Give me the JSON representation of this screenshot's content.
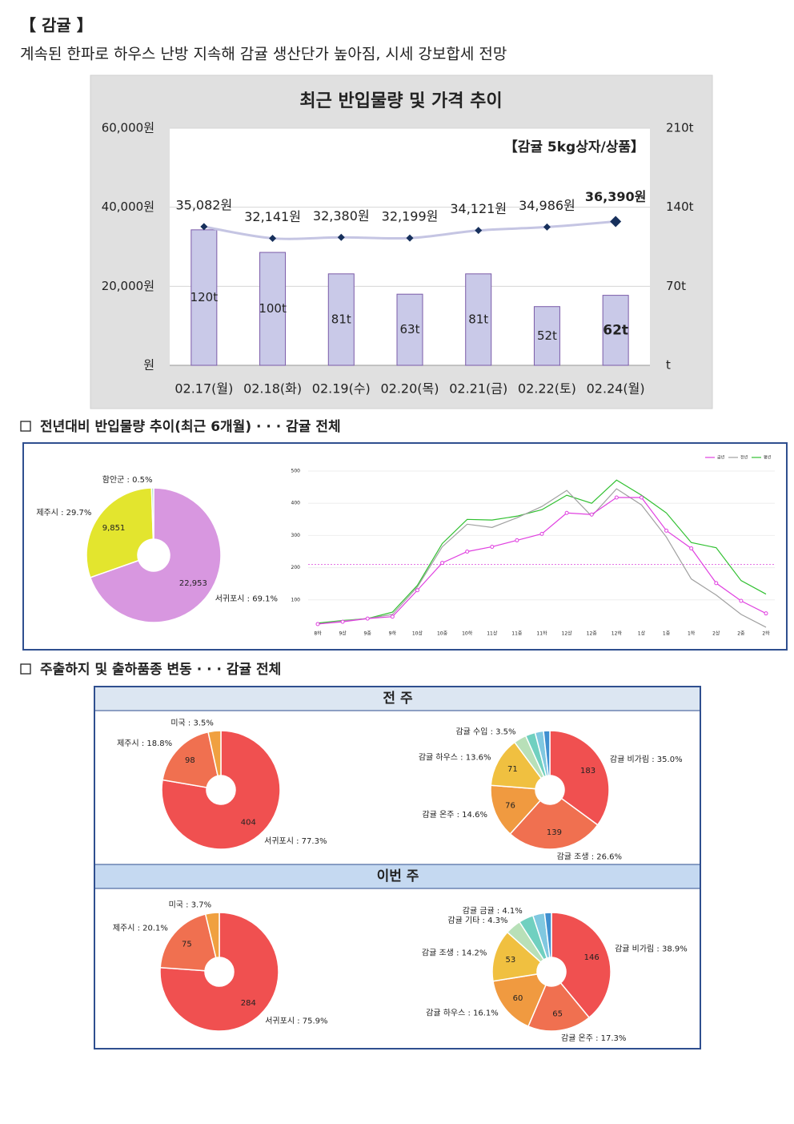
{
  "heading": "【 감귤 】",
  "summary": "계속된 한파로 하우스 난방 지속해 감귤 생산단가 높아짐, 시세 강보합세 전망",
  "sections": [
    "전년대비 반입물량 추이(최근 6개월) · · · 감귤 전체",
    "주출하지 및 출하품종 변동 · · · 감귤 전체"
  ],
  "panels": [
    "전 주",
    "이번 주"
  ],
  "chart_data": [
    {
      "type": "bar_line",
      "title": "최근 반입물량 및 가격 추이",
      "annotation": "【감귤 5kg상자/상품】",
      "categories": [
        "02.17(월)",
        "02.18(화)",
        "02.19(수)",
        "02.20(목)",
        "02.21(금)",
        "02.22(토)",
        "02.24(월)"
      ],
      "series": [
        {
          "type": "bar",
          "axis": "y2",
          "color": "#c9c9e8",
          "stroke": "#7a5aa8",
          "values": [
            120,
            100,
            81,
            63,
            81,
            52,
            62
          ],
          "value_labels": [
            "120t",
            "100t",
            "81t",
            "63t",
            "81t",
            "52t",
            "62t"
          ]
        },
        {
          "type": "line",
          "color": "#c5c5e3",
          "marker_color": "#17305c",
          "values": [
            35082,
            32141,
            32380,
            32199,
            34121,
            34986,
            36390
          ],
          "value_labels": [
            "35,082원",
            "32,141원",
            "32,380원",
            "32,199원",
            "34,121원",
            "34,986원",
            "36,390원"
          ]
        }
      ],
      "ylim": [
        0,
        60000
      ],
      "yticks": [
        {
          "value": 0,
          "label": "원"
        },
        {
          "value": 20000,
          "label": "20,000원"
        },
        {
          "value": 40000,
          "label": "40,000원"
        },
        {
          "value": 60000,
          "label": "60,000원"
        }
      ],
      "y2lim": [
        0,
        210
      ],
      "y2ticks": [
        {
          "value": 0,
          "label": "t"
        },
        {
          "value": 70,
          "label": "70t"
        },
        {
          "value": 140,
          "label": "140t"
        },
        {
          "value": 210,
          "label": "210t"
        }
      ],
      "grid": true,
      "highlight_last": true
    },
    {
      "type": "donut",
      "categories": [
        "서귀포시 : 69.1%",
        "제주시 : 29.7%",
        "함안군 : 0.5%"
      ],
      "values": [
        22953,
        9851,
        166
      ],
      "value_labels": [
        "22,953",
        "9,851",
        null
      ],
      "colors": [
        "#d897e0",
        "#e3e52e",
        "#a8e0c0"
      ],
      "value_label_color": "#555555"
    },
    {
      "type": "line",
      "categories": [
        "8하",
        "9상",
        "9중",
        "9하",
        "10상",
        "10중",
        "10하",
        "11상",
        "11중",
        "11하",
        "12상",
        "12중",
        "12하",
        "1상",
        "1중",
        "1하",
        "2상",
        "2중",
        "2하"
      ],
      "series": [
        {
          "name": "금년",
          "color": "#e040e0",
          "values": [
            25,
            32,
            42,
            48,
            130,
            215,
            250,
            265,
            285,
            305,
            370,
            365,
            418,
            418,
            315,
            260,
            152,
            97,
            58
          ]
        },
        {
          "name": "전년",
          "color": "#a0a0a0",
          "values": [
            25,
            35,
            42,
            55,
            140,
            265,
            335,
            325,
            355,
            390,
            440,
            360,
            445,
            395,
            295,
            165,
            115,
            55,
            15
          ]
        },
        {
          "name": "평년",
          "color": "#30c030",
          "values": [
            28,
            36,
            42,
            62,
            145,
            275,
            350,
            348,
            360,
            380,
            425,
            400,
            472,
            425,
            370,
            278,
            262,
            160,
            118
          ]
        }
      ],
      "ylim": [
        0,
        500
      ],
      "yticks": [
        100,
        200,
        300,
        400,
        500
      ],
      "grid": true,
      "threshold": 210,
      "threshold_color": "#e060e0",
      "legend": "top-right"
    },
    {
      "type": "donut",
      "categories": [
        "서귀포시 : 77.3%",
        "제주시 : 18.8%",
        "미국 : 3.5%"
      ],
      "values": [
        404,
        98,
        18
      ],
      "value_labels": [
        "404",
        "98",
        null
      ],
      "colors": [
        "#f05050",
        "#f07050",
        "#f0a040"
      ],
      "value_label_color": "#ffffff"
    },
    {
      "type": "donut",
      "categories": [
        "감귤 비가림 : 35.0%",
        "감귤 조생 : 26.6%",
        "감귤 온주 : 14.6%",
        "감귤 하우스 : 13.6%",
        "감귤 수입 : 3.5%",
        null,
        null,
        null
      ],
      "values": [
        183,
        139,
        76,
        71,
        18,
        14,
        12,
        9
      ],
      "value_labels": [
        "183",
        "139",
        "76",
        "71",
        null,
        null,
        null,
        null
      ],
      "colors": [
        "#f05050",
        "#f07050",
        "#f09a40",
        "#f0c040",
        "#b8e0b8",
        "#70d0c0",
        "#80c8e0",
        "#4090d0"
      ],
      "value_label_color": "#ffffff"
    },
    {
      "type": "donut",
      "categories": [
        "서귀포시 : 75.9%",
        "제주시 : 20.1%",
        "미국 : 3.7%"
      ],
      "values": [
        284,
        75,
        14
      ],
      "value_labels": [
        "284",
        "75",
        null
      ],
      "colors": [
        "#f05050",
        "#f07050",
        "#f0a040"
      ],
      "value_label_color": "#ffffff"
    },
    {
      "type": "donut",
      "categories": [
        "감귤 비가림 : 38.9%",
        "감귤 온주 : 17.3%",
        "감귤 하우스 : 16.1%",
        "감귤 조생 : 14.2%",
        "감귤 기타 : 4.3%",
        "감귤 금귤 : 4.1%",
        null,
        null
      ],
      "values": [
        146,
        65,
        60,
        53,
        16,
        15,
        12,
        7
      ],
      "value_labels": [
        "146",
        "65",
        "60",
        "53",
        null,
        null,
        null,
        null
      ],
      "colors": [
        "#f05050",
        "#f07050",
        "#f09a40",
        "#f0c040",
        "#b8e0b8",
        "#70d0c0",
        "#80c8e0",
        "#4090d0"
      ],
      "value_label_color": "#ffffff"
    }
  ]
}
